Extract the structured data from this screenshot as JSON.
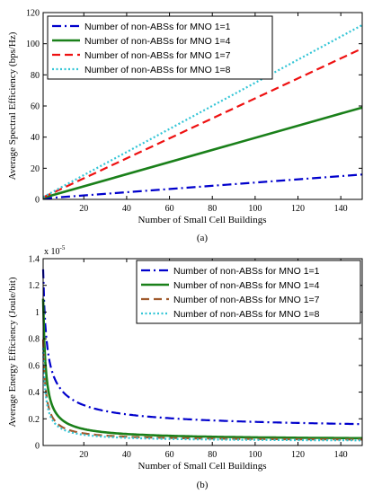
{
  "chart_data": [
    {
      "type": "line",
      "panel_label": "(a)",
      "xlabel": "Number of Small Cell Buildings",
      "ylabel": "Average Spectral Efficiency (bps/Hz)",
      "xlim": [
        1,
        150
      ],
      "ylim": [
        0,
        120
      ],
      "xticks": [
        20,
        40,
        60,
        80,
        100,
        120,
        140
      ],
      "yticks": [
        0,
        20,
        40,
        60,
        80,
        100,
        120
      ],
      "grid": false,
      "legend_position": "top-left",
      "series": [
        {
          "name": "Number of non-ABSs for MNO 1=1",
          "color": "#0000cc",
          "style": "dashdot",
          "x": [
            1,
            150
          ],
          "y": [
            0.6,
            16
          ]
        },
        {
          "name": "Number of non-ABSs for MNO 1=4",
          "color": "#1a801a",
          "style": "solid",
          "x": [
            1,
            150
          ],
          "y": [
            1,
            59
          ]
        },
        {
          "name": "Number of non-ABSs for MNO 1=7",
          "color": "#ee1111",
          "style": "dashed",
          "x": [
            1,
            150
          ],
          "y": [
            1.3,
            97
          ]
        },
        {
          "name": "Number of non-ABSs for MNO 1=8",
          "color": "#33c5d6",
          "style": "dotted",
          "x": [
            1,
            150
          ],
          "y": [
            1.5,
            112
          ]
        }
      ]
    },
    {
      "type": "line",
      "panel_label": "(b)",
      "xlabel": "Number of Small Cell Buildings",
      "ylabel": "Average Energy Efficiency (Joule/bit)",
      "scale_note": "x 10",
      "scale_exponent": "-5",
      "xlim": [
        1,
        150
      ],
      "ylim": [
        0,
        1.4
      ],
      "xticks": [
        20,
        40,
        60,
        80,
        100,
        120,
        140
      ],
      "yticks": [
        0,
        0.2,
        0.4,
        0.6,
        0.8,
        1,
        1.2,
        1.4
      ],
      "grid": false,
      "legend_position": "top-right",
      "series": [
        {
          "name": "Number of non-ABSs for MNO 1=1",
          "color": "#0000cc",
          "style": "dashdot",
          "model": {
            "a": 0.1,
            "b": 1.22,
            "c": 0.6
          }
        },
        {
          "name": "Number of non-ABSs for MNO 1=4",
          "color": "#1a801a",
          "style": "solid",
          "model": {
            "a": 0.04,
            "b": 1.06,
            "c": 0.85
          }
        },
        {
          "name": "Number of non-ABSs for MNO 1=7",
          "color": "#a05a2c",
          "style": "dashed",
          "model": {
            "a": 0.035,
            "b": 0.76,
            "c": 0.87
          }
        },
        {
          "name": "Number of non-ABSs for MNO 1=8",
          "color": "#33c5d6",
          "style": "dotted",
          "model": {
            "a": 0.03,
            "b": 0.7,
            "c": 0.88
          }
        }
      ]
    }
  ]
}
